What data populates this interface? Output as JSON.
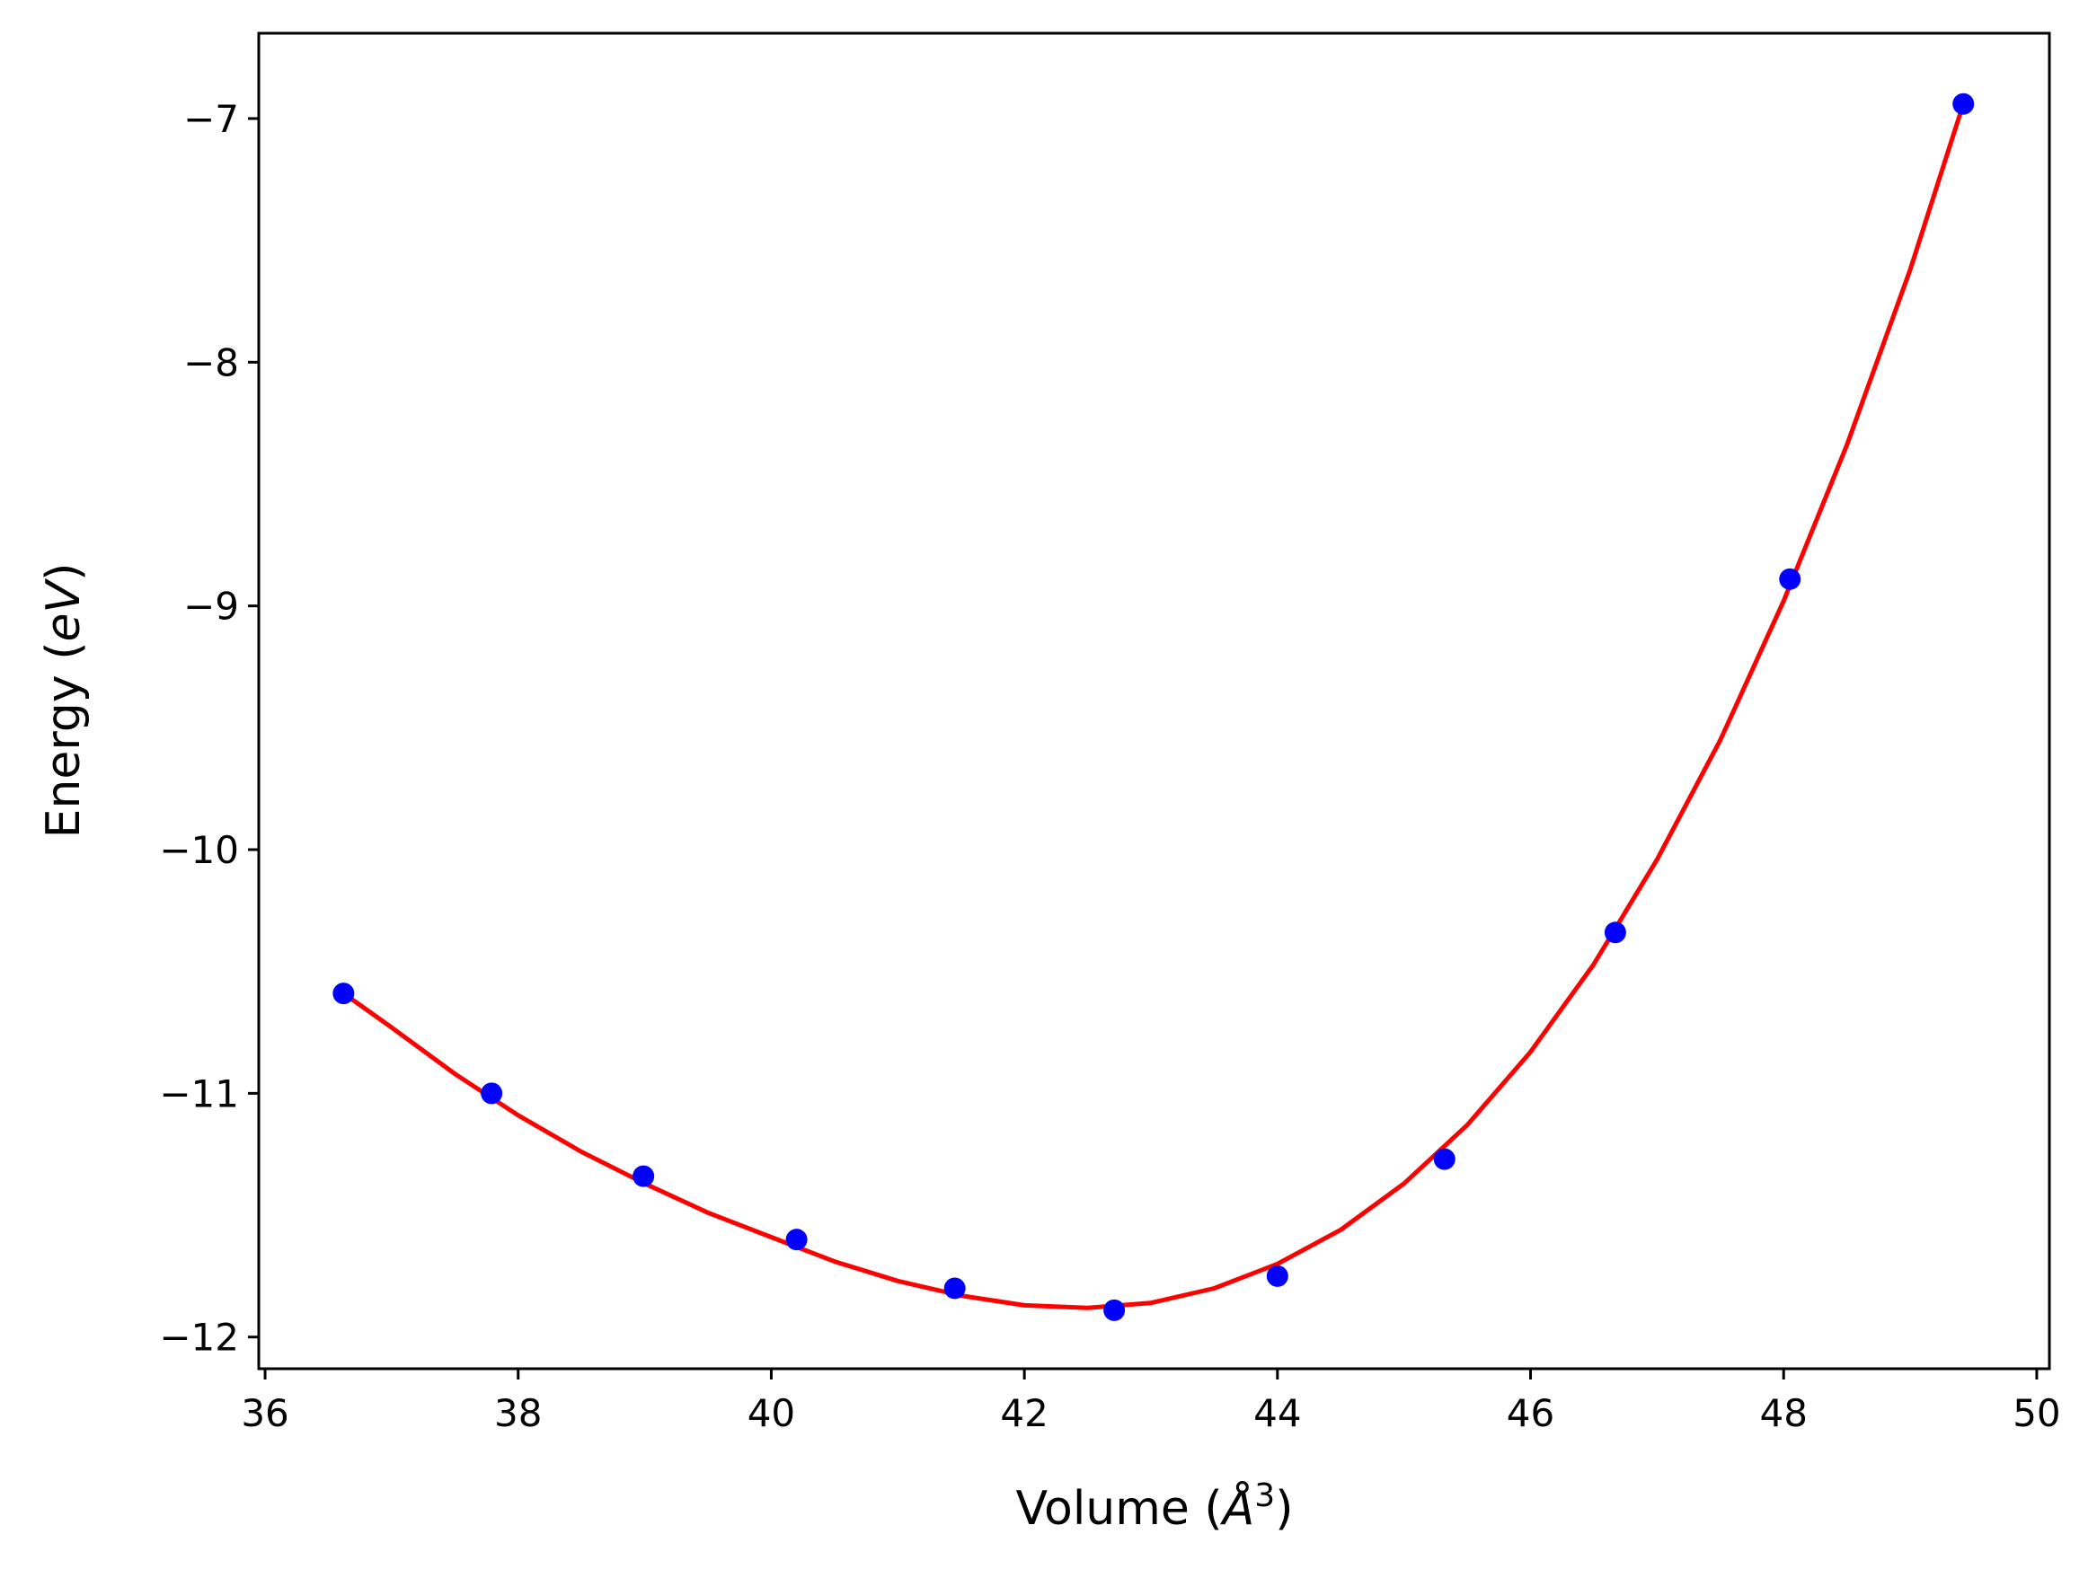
{
  "chart_data": {
    "type": "scatter",
    "title": "",
    "xlabel": "Volume (",
    "xlabel_symbol": "Å",
    "xlabel_exponent": "3",
    "xlabel_close": ")",
    "ylabel": "Energy (",
    "ylabel_unit": "eV",
    "ylabel_close": ")",
    "xlim": [
      35.95,
      50.1
    ],
    "ylim": [
      -12.13,
      -6.65
    ],
    "xticks": [
      36,
      38,
      40,
      42,
      44,
      46,
      48,
      50
    ],
    "yticks": [
      -12,
      -11,
      -10,
      -9,
      -8,
      -7
    ],
    "xtick_labels": [
      "36",
      "38",
      "40",
      "42",
      "44",
      "46",
      "48",
      "50"
    ],
    "ytick_labels": [
      "−12",
      "−11",
      "−10",
      "−9",
      "−8",
      "−7"
    ],
    "grid": false,
    "legend": "none",
    "series": [
      {
        "kind": "points",
        "color": "#0000ff",
        "x": [
          36.62,
          37.79,
          38.99,
          40.2,
          41.45,
          42.71,
          44.0,
          45.32,
          46.67,
          48.05,
          49.42
        ],
        "y": [
          -10.59,
          -11.0,
          -11.34,
          -11.6,
          -11.8,
          -11.89,
          -11.75,
          -11.27,
          -10.34,
          -8.89,
          -6.94
        ]
      },
      {
        "kind": "fit-line",
        "color": "#ff0000",
        "x": [
          36.62,
          37.0,
          37.5,
          38.0,
          38.5,
          39.0,
          39.5,
          40.0,
          40.5,
          41.0,
          41.5,
          42.0,
          42.5,
          43.0,
          43.5,
          44.0,
          44.5,
          45.0,
          45.5,
          46.0,
          46.5,
          47.0,
          47.5,
          48.0,
          48.5,
          49.0,
          49.42
        ],
        "y": [
          -10.59,
          -10.73,
          -10.92,
          -11.09,
          -11.24,
          -11.37,
          -11.49,
          -11.59,
          -11.69,
          -11.77,
          -11.83,
          -11.87,
          -11.88,
          -11.86,
          -11.8,
          -11.7,
          -11.56,
          -11.37,
          -11.13,
          -10.83,
          -10.47,
          -10.04,
          -9.55,
          -8.98,
          -8.34,
          -7.62,
          -6.94
        ]
      }
    ]
  }
}
